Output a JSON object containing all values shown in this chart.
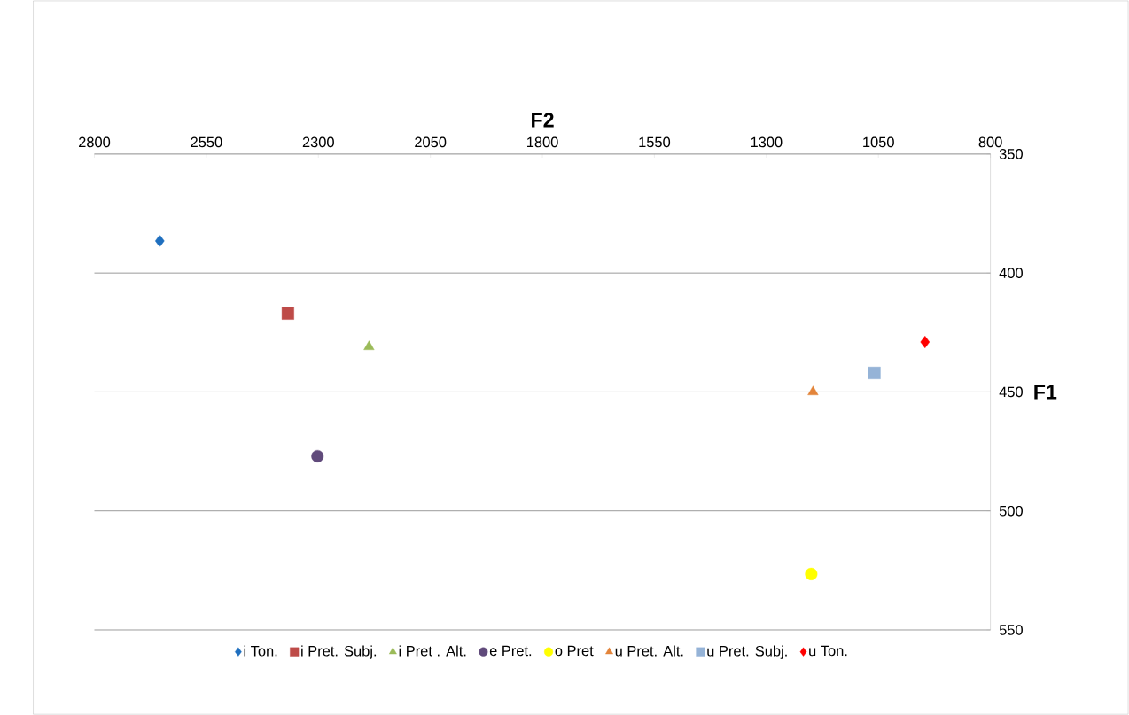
{
  "chart_data": {
    "type": "scatter",
    "xlabel": "F2",
    "ylabel": "F1",
    "xlim": [
      2800,
      800
    ],
    "ylim": [
      550,
      350
    ],
    "xticks": [
      2800,
      2550,
      2300,
      2050,
      1800,
      1550,
      1300,
      1050,
      800
    ],
    "yticks": [
      350,
      400,
      450,
      500,
      550
    ],
    "grid": "y",
    "legend": "bottom",
    "series": [
      {
        "name": "i Ton.",
        "color": "#1f6fbf",
        "marker": "diamond",
        "x": [
          2654
        ],
        "values": [
          386.5
        ]
      },
      {
        "name": "i Pret. Subj.",
        "color": "#be4b48",
        "marker": "square",
        "x": [
          2368
        ],
        "values": [
          417
        ]
      },
      {
        "name": "i Pret . Alt.",
        "color": "#9bbb59",
        "marker": "triangle",
        "x": [
          2187
        ],
        "values": [
          431
        ]
      },
      {
        "name": "e Pret.",
        "color": "#604a7b",
        "marker": "circle",
        "x": [
          2302
        ],
        "values": [
          477
        ]
      },
      {
        "name": "o Pret",
        "color": "#ffff00",
        "marker": "circle",
        "x": [
          1200
        ],
        "values": [
          526.5
        ]
      },
      {
        "name": "u Pret. Alt.",
        "color": "#e3843a",
        "marker": "triangle",
        "x": [
          1196
        ],
        "values": [
          450
        ]
      },
      {
        "name": "u Pret. Subj.",
        "color": "#95b3d7",
        "marker": "square",
        "x": [
          1059
        ],
        "values": [
          442
        ]
      },
      {
        "name": "u Ton.",
        "color": "#ff0000",
        "marker": "diamond",
        "x": [
          946
        ],
        "values": [
          429
        ]
      }
    ]
  }
}
